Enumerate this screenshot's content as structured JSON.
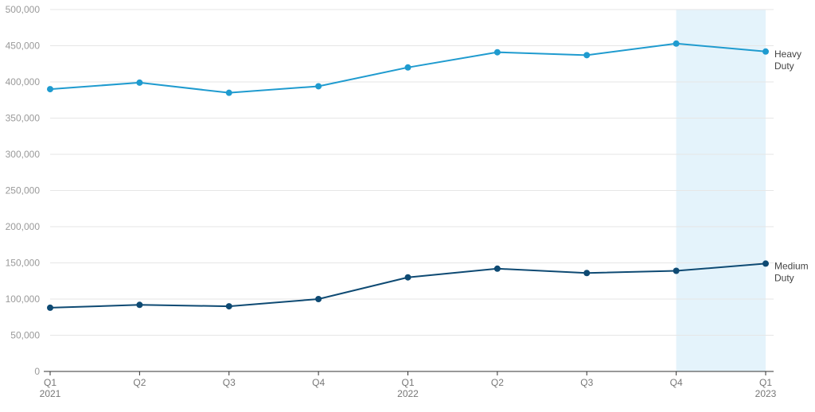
{
  "chart_data": {
    "type": "line",
    "categories": [
      {
        "quarter": "Q1",
        "year": "2021"
      },
      {
        "quarter": "Q2",
        "year": ""
      },
      {
        "quarter": "Q3",
        "year": ""
      },
      {
        "quarter": "Q4",
        "year": ""
      },
      {
        "quarter": "Q1",
        "year": "2022"
      },
      {
        "quarter": "Q2",
        "year": ""
      },
      {
        "quarter": "Q3",
        "year": ""
      },
      {
        "quarter": "Q4",
        "year": ""
      },
      {
        "quarter": "Q1",
        "year": "2023"
      }
    ],
    "series": [
      {
        "name_lines": [
          "Heavy",
          "Duty"
        ],
        "color": "#1f9bcf",
        "values": [
          390000,
          399000,
          385000,
          394000,
          420000,
          441000,
          437000,
          453000,
          442000
        ]
      },
      {
        "name_lines": [
          "Medium",
          "Duty"
        ],
        "color": "#0e4a73",
        "values": [
          88000,
          92000,
          90000,
          100000,
          130000,
          142000,
          136000,
          139000,
          149000
        ]
      }
    ],
    "ylim": [
      0,
      500000
    ],
    "yticks": [
      0,
      50000,
      100000,
      150000,
      200000,
      250000,
      300000,
      350000,
      400000,
      450000,
      500000
    ],
    "ytick_labels": [
      "0",
      "50,000",
      "100,000",
      "150,000",
      "200,000",
      "250,000",
      "300,000",
      "350,000",
      "400,000",
      "450,000",
      "500,000"
    ],
    "highlight": {
      "from_index": 7,
      "to_index": 8,
      "color": "#e4f3fb"
    },
    "grid": true
  }
}
